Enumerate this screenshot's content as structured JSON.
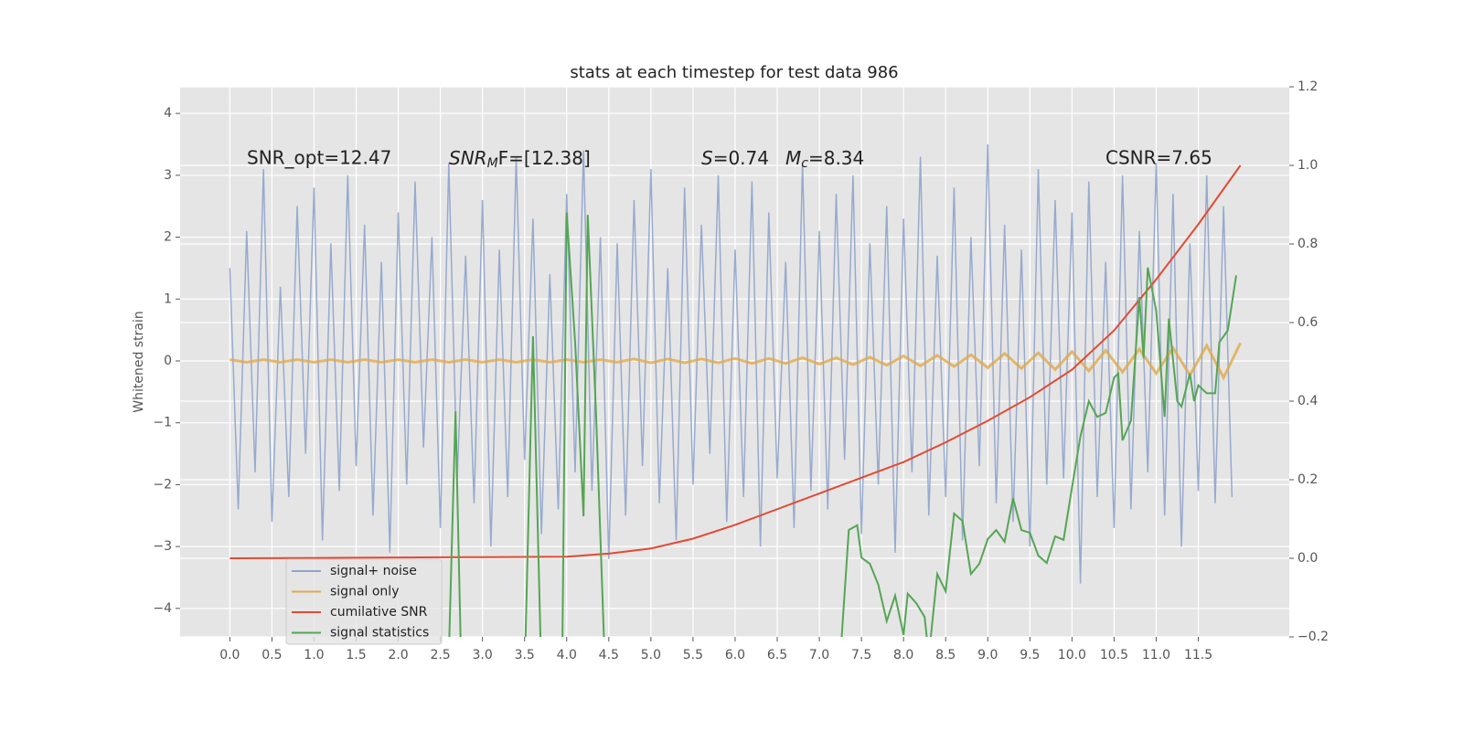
{
  "chart_data": {
    "type": "line",
    "title": "stats at each timestep for test data 986",
    "ylabel": "Whitened strain",
    "annotations": [
      {
        "base": "SNR_opt=12.47"
      },
      {
        "base": "SNR",
        "sub": "M",
        "rest": "F=[12.38]"
      },
      {
        "base": "S",
        "rest": "=0.74"
      },
      {
        "base": "M",
        "sub": "c",
        "rest": "=8.34"
      },
      {
        "base": "CSNR=7.65"
      }
    ],
    "xlim": [
      -0.59,
      12.58
    ],
    "ylim": [
      -4.46,
      4.43
    ],
    "y2lim": [
      -0.2,
      1.2
    ],
    "xticks": [
      {
        "value": 0,
        "label": "0.0"
      },
      0.5,
      {
        "value": 1,
        "label": "1.0"
      },
      1.5,
      {
        "value": 2,
        "label": "2.0"
      },
      2.5,
      {
        "value": 3,
        "label": "3.0"
      },
      3.5,
      {
        "value": 4,
        "label": "4.0"
      },
      4.5,
      {
        "value": 5,
        "label": "5.0"
      },
      5.5,
      {
        "value": 6,
        "label": "6.0"
      },
      6.5,
      {
        "value": 7,
        "label": "7.0"
      },
      7.5,
      {
        "value": 8,
        "label": "8.0"
      },
      8.5,
      {
        "value": 9,
        "label": "9.0"
      },
      9.5,
      {
        "value": 10,
        "label": "10.0"
      },
      10.5,
      {
        "value": 11,
        "label": "11.0"
      },
      11.5
    ],
    "yticks": [
      {
        "value": -4,
        "label": "−4"
      },
      {
        "value": -3,
        "label": "−3"
      },
      {
        "value": -2,
        "label": "−2"
      },
      {
        "value": -1,
        "label": "−1"
      },
      0,
      1,
      2,
      3,
      4
    ],
    "y2ticks": [
      {
        "value": -0.2,
        "label": "−0.2"
      },
      {
        "value": 0,
        "label": "0.0"
      },
      0.2,
      0.4,
      0.6,
      0.8,
      {
        "value": 1,
        "label": "1.0"
      },
      1.2
    ],
    "grid": true,
    "legend": "lower left",
    "series": [
      {
        "name": "signal+ noise",
        "color": "#8fa3cb",
        "x": [
          0,
          0.1,
          0.2,
          0.3,
          0.4,
          0.5,
          0.6,
          0.7,
          0.8,
          0.9,
          1,
          1.1,
          1.2,
          1.3,
          1.4,
          1.5,
          1.6,
          1.7,
          1.8,
          1.9,
          2,
          2.1,
          2.2,
          2.3,
          2.4,
          2.5,
          2.6,
          2.7,
          2.8,
          2.9,
          3,
          3.1,
          3.2,
          3.3,
          3.4,
          3.5,
          3.6,
          3.7,
          3.8,
          3.9,
          4,
          4.1,
          4.2,
          4.3,
          4.4,
          4.5,
          4.6,
          4.7,
          4.8,
          4.9,
          5,
          5.1,
          5.2,
          5.3,
          5.4,
          5.5,
          5.6,
          5.7,
          5.8,
          5.9,
          6,
          6.1,
          6.2,
          6.3,
          6.4,
          6.5,
          6.6,
          6.7,
          6.8,
          6.9,
          7,
          7.1,
          7.2,
          7.3,
          7.4,
          7.5,
          7.6,
          7.7,
          7.8,
          7.9,
          8,
          8.1,
          8.2,
          8.3,
          8.4,
          8.5,
          8.6,
          8.7,
          8.8,
          8.9,
          9,
          9.1,
          9.2,
          9.3,
          9.4,
          9.5,
          9.6,
          9.7,
          9.8,
          9.9,
          10,
          10.1,
          10.2,
          10.3,
          10.4,
          10.5,
          10.6,
          10.7,
          10.8,
          10.9,
          11,
          11.1,
          11.2,
          11.3,
          11.4,
          11.5,
          11.6,
          11.7,
          11.8,
          11.9
        ],
        "values": [
          1.5,
          -2.4,
          2.1,
          -1.8,
          3.1,
          -2.6,
          1.2,
          -2.2,
          2.5,
          -1.5,
          2.8,
          -2.9,
          1.9,
          -2.1,
          3.0,
          -1.7,
          2.2,
          -2.5,
          1.6,
          -3.1,
          2.4,
          -2.0,
          2.9,
          -1.4,
          2.0,
          -2.7,
          3.2,
          -1.9,
          1.7,
          -2.3,
          2.6,
          -3.0,
          1.8,
          -2.2,
          3.3,
          -1.6,
          2.3,
          -2.8,
          1.4,
          -2.4,
          2.7,
          -1.8,
          3.4,
          -2.1,
          2.0,
          -3.2,
          1.9,
          -2.5,
          2.6,
          -1.7,
          3.1,
          -2.3,
          1.5,
          -2.9,
          2.8,
          -2.0,
          2.2,
          -1.5,
          3.0,
          -2.6,
          1.8,
          -2.2,
          2.9,
          -3.0,
          2.4,
          -1.9,
          1.6,
          -2.7,
          3.2,
          -2.1,
          2.1,
          -2.4,
          2.7,
          -1.6,
          3.0,
          -2.8,
          1.9,
          -2.0,
          2.5,
          -3.1,
          2.3,
          -1.8,
          3.3,
          -2.5,
          1.7,
          -2.2,
          2.8,
          -2.9,
          2.0,
          -1.7,
          3.5,
          -2.3,
          2.2,
          -2.6,
          1.8,
          -3.0,
          3.1,
          -2.0,
          2.6,
          -1.9,
          2.4,
          -3.6,
          2.9,
          -2.2,
          1.6,
          -2.7,
          3.0,
          -2.4,
          2.1,
          -1.8,
          3.2,
          -2.5,
          2.7,
          -3.0,
          1.9,
          -2.1,
          3.0,
          -2.3,
          2.5,
          -2.2
        ]
      },
      {
        "name": "signal only",
        "color": "#e0a94a",
        "x": [
          0,
          0.2,
          0.4,
          0.6,
          0.8,
          1,
          1.2,
          1.4,
          1.6,
          1.8,
          2,
          2.2,
          2.4,
          2.6,
          2.8,
          3,
          3.2,
          3.4,
          3.6,
          3.8,
          4,
          4.2,
          4.4,
          4.6,
          4.8,
          5,
          5.2,
          5.4,
          5.6,
          5.8,
          6,
          6.2,
          6.4,
          6.6,
          6.8,
          7,
          7.2,
          7.4,
          7.6,
          7.8,
          8,
          8.2,
          8.4,
          8.6,
          8.8,
          9,
          9.2,
          9.4,
          9.6,
          9.8,
          10,
          10.2,
          10.4,
          10.6,
          10.8,
          11,
          11.2,
          11.4,
          11.6,
          11.8,
          12
        ],
        "values": [
          0.02,
          -0.02,
          0.02,
          -0.02,
          0.02,
          -0.02,
          0.02,
          -0.02,
          0.02,
          -0.02,
          0.02,
          -0.02,
          0.02,
          -0.02,
          0.02,
          -0.02,
          0.02,
          -0.02,
          0.02,
          -0.02,
          0.02,
          -0.02,
          0.02,
          -0.02,
          0.03,
          -0.03,
          0.03,
          -0.03,
          0.03,
          -0.03,
          0.04,
          -0.04,
          0.04,
          -0.04,
          0.05,
          -0.05,
          0.05,
          -0.06,
          0.06,
          -0.07,
          0.08,
          -0.08,
          0.09,
          -0.09,
          0.1,
          -0.11,
          0.12,
          -0.12,
          0.13,
          -0.14,
          0.15,
          -0.16,
          0.17,
          -0.18,
          0.19,
          -0.2,
          0.21,
          -0.23,
          0.25,
          -0.27,
          0.29
        ]
      },
      {
        "name": "cumilative SNR",
        "color": "#e24a33",
        "axis": "y2",
        "x": [
          0,
          1,
          2,
          3,
          4,
          4.5,
          5,
          5.5,
          6,
          6.5,
          7,
          7.5,
          8,
          8.5,
          9,
          9.5,
          10,
          10.5,
          11,
          11.5,
          12
        ],
        "values": [
          0,
          0.001,
          0.002,
          0.003,
          0.004,
          0.012,
          0.025,
          0.05,
          0.085,
          0.125,
          0.165,
          0.205,
          0.245,
          0.295,
          0.35,
          0.41,
          0.48,
          0.58,
          0.71,
          0.85,
          1.0
        ]
      },
      {
        "name": "signal statistics",
        "color": "#55a555",
        "axis": "y2",
        "x": [
          2.6,
          2.68,
          2.75,
          3.5,
          3.6,
          3.7,
          3.95,
          4.0,
          4.1,
          4.2,
          4.25,
          4.35,
          4.45,
          7.25,
          7.35,
          7.45,
          7.5,
          7.6,
          7.7,
          7.8,
          7.9,
          8.0,
          8.05,
          8.15,
          8.25,
          8.3,
          8.4,
          8.5,
          8.6,
          8.7,
          8.8,
          8.9,
          9.0,
          9.1,
          9.2,
          9.3,
          9.4,
          9.5,
          9.6,
          9.7,
          9.8,
          9.9,
          10.0,
          10.1,
          10.2,
          10.3,
          10.4,
          10.5,
          10.55,
          10.6,
          10.7,
          10.8,
          10.85,
          10.9,
          11.0,
          11.1,
          11.15,
          11.25,
          11.3,
          11.4,
          11.45,
          11.5,
          11.6,
          11.7,
          11.75,
          11.85,
          11.95
        ],
        "values": [
          -0.25,
          0.374,
          -0.3,
          -0.3,
          0.565,
          -0.3,
          -0.2,
          0.88,
          0.55,
          0.107,
          0.874,
          0.36,
          -0.25,
          -0.25,
          0.072,
          0.084,
          0.002,
          -0.014,
          -0.067,
          -0.16,
          -0.095,
          -0.195,
          -0.09,
          -0.114,
          -0.149,
          -0.25,
          -0.04,
          -0.084,
          0.114,
          0.095,
          -0.04,
          -0.014,
          0.049,
          0.072,
          0.042,
          0.153,
          0.072,
          0.065,
          0.007,
          -0.012,
          0.056,
          0.047,
          0.18,
          0.31,
          0.4,
          0.36,
          0.37,
          0.46,
          0.47,
          0.3,
          0.35,
          0.665,
          0.51,
          0.74,
          0.63,
          0.36,
          0.61,
          0.4,
          0.386,
          0.47,
          0.4,
          0.44,
          0.42,
          0.42,
          0.55,
          0.58,
          0.72
        ]
      }
    ]
  }
}
